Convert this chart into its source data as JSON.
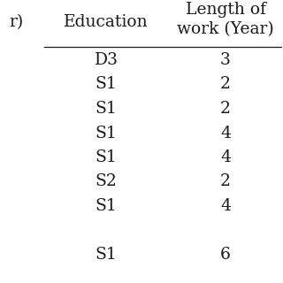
{
  "col_headers": [
    "Education",
    "Length of\nwork (Year)"
  ],
  "partial_left_header": "r)",
  "rows": [
    [
      "D3",
      "3"
    ],
    [
      "S1",
      "2"
    ],
    [
      "S1",
      "2"
    ],
    [
      "S1",
      "4"
    ],
    [
      "S1",
      "4"
    ],
    [
      "S2",
      "2"
    ],
    [
      "S1",
      "4"
    ],
    [
      "",
      ""
    ],
    [
      "S1",
      "6"
    ]
  ],
  "background_color": "#ffffff",
  "text_color": "#1a1a1a",
  "font_size": 13.5,
  "header_font_size": 13.5
}
